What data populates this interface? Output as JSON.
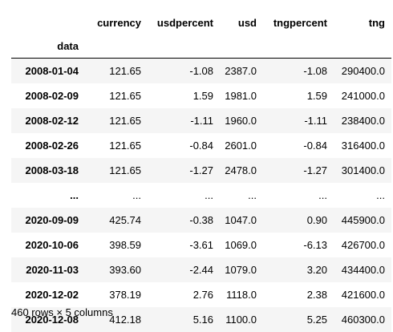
{
  "table": {
    "columns": [
      "currency",
      "usdpercent",
      "usd",
      "tngpercent",
      "tng"
    ],
    "index_name": "data",
    "rows": [
      {
        "index": "2008-01-04",
        "cells": [
          "121.65",
          "-1.08",
          "2387.0",
          "-1.08",
          "290400.0"
        ]
      },
      {
        "index": "2008-02-09",
        "cells": [
          "121.65",
          "1.59",
          "1981.0",
          "1.59",
          "241000.0"
        ]
      },
      {
        "index": "2008-02-12",
        "cells": [
          "121.65",
          "-1.11",
          "1960.0",
          "-1.11",
          "238400.0"
        ]
      },
      {
        "index": "2008-02-26",
        "cells": [
          "121.65",
          "-0.84",
          "2601.0",
          "-0.84",
          "316400.0"
        ]
      },
      {
        "index": "2008-03-18",
        "cells": [
          "121.65",
          "-1.27",
          "2478.0",
          "-1.27",
          "301400.0"
        ]
      },
      {
        "index": "...",
        "cells": [
          "...",
          "...",
          "...",
          "...",
          "..."
        ]
      },
      {
        "index": "2020-09-09",
        "cells": [
          "425.74",
          "-0.38",
          "1047.0",
          "0.90",
          "445900.0"
        ]
      },
      {
        "index": "2020-10-06",
        "cells": [
          "398.59",
          "-3.61",
          "1069.0",
          "-6.13",
          "426700.0"
        ]
      },
      {
        "index": "2020-11-03",
        "cells": [
          "393.60",
          "-2.44",
          "1079.0",
          "3.20",
          "434400.0"
        ]
      },
      {
        "index": "2020-12-02",
        "cells": [
          "378.19",
          "2.76",
          "1118.0",
          "2.38",
          "421600.0"
        ]
      },
      {
        "index": "2020-12-08",
        "cells": [
          "412.18",
          "5.16",
          "1100.0",
          "5.25",
          "460300.0"
        ]
      }
    ]
  },
  "shape_note": "460 rows × 5 columns",
  "colors": {
    "stripe": "#f5f5f5",
    "text": "#000000",
    "header_rule": "#000000"
  }
}
